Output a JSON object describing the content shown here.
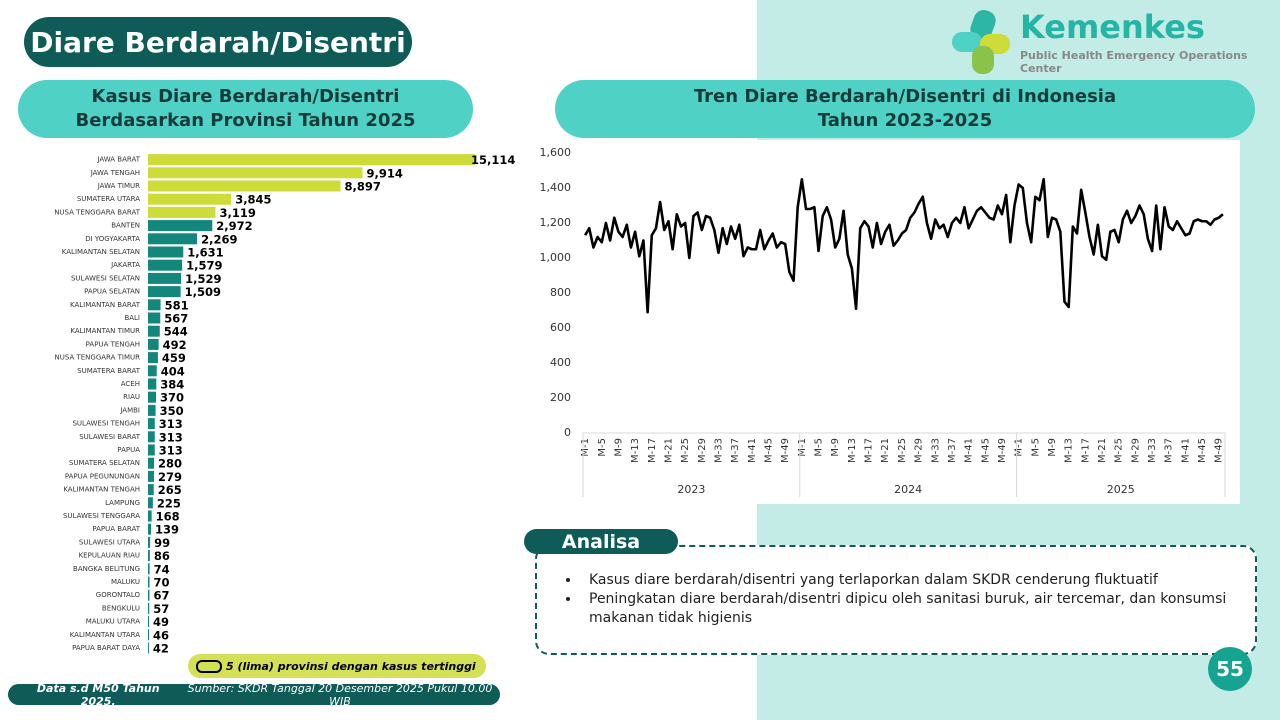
{
  "header": {
    "title": "Diare Berdarah/Disentri"
  },
  "logo": {
    "name": "Kemenkes",
    "subtitle": "Public Health Emergency Operations Center"
  },
  "chart_data": [
    {
      "type": "hbar",
      "title": [
        "Kasus Diare Berdarah/Disentri",
        "Berdasarkan Provinsi Tahun 2025"
      ],
      "categories": [
        "JAWA BARAT",
        "JAWA TENGAH",
        "JAWA TIMUR",
        "SUMATERA UTARA",
        "NUSA TENGGARA BARAT",
        "BANTEN",
        "DI YOGYAKARTA",
        "KALIMANTAN SELATAN",
        "JAKARTA",
        "SULAWESI SELATAN",
        "PAPUA SELATAN",
        "KALIMANTAN BARAT",
        "BALI",
        "KALIMANTAN TIMUR",
        "PAPUA TENGAH",
        "NUSA TENGGARA TIMUR",
        "SUMATERA BARAT",
        "ACEH",
        "RIAU",
        "JAMBI",
        "SULAWESI TENGAH",
        "SULAWESI BARAT",
        "PAPUA",
        "SUMATERA SELATAN",
        "PAPUA PEGUNUNGAN",
        "KALIMANTAN TENGAH",
        "LAMPUNG",
        "SULAWESI TENGGARA",
        "PAPUA BARAT",
        "SULAWESI UTARA",
        "KEPULAUAN RIAU",
        "BANGKA BELITUNG",
        "MALUKU",
        "GORONTALO",
        "BENGKULU",
        "MALUKU UTARA",
        "KALIMANTAN UTARA",
        "PAPUA BARAT DAYA"
      ],
      "values": [
        15114,
        9914,
        8897,
        3845,
        3119,
        2972,
        2269,
        1631,
        1579,
        1529,
        1509,
        581,
        567,
        544,
        492,
        459,
        404,
        384,
        370,
        350,
        313,
        313,
        313,
        280,
        279,
        265,
        225,
        168,
        139,
        99,
        86,
        74,
        70,
        67,
        57,
        49,
        46,
        42
      ],
      "value_labels": [
        "15,114",
        "9,914",
        "8,897",
        "3,845",
        "3,119",
        "2,972",
        "2,269",
        "1,631",
        "1,579",
        "1,529",
        "1,509",
        "581",
        "567",
        "544",
        "492",
        "459",
        "404",
        "384",
        "370",
        "350",
        "313",
        "313",
        "313",
        "280",
        "279",
        "265",
        "225",
        "168",
        "139",
        "99",
        "86",
        "74",
        "70",
        "67",
        "57",
        "49",
        "46",
        "42"
      ],
      "colors": [
        "#cddc39",
        "#cddc39",
        "#cddc39",
        "#cddc39",
        "#cddc39",
        "#14877d",
        "#14877d",
        "#14877d",
        "#14877d",
        "#14877d",
        "#14877d",
        "#14877d",
        "#14877d",
        "#14877d",
        "#14877d",
        "#14877d",
        "#14877d",
        "#14877d",
        "#14877d",
        "#14877d",
        "#14877d",
        "#14877d",
        "#14877d",
        "#14877d",
        "#14877d",
        "#14877d",
        "#14877d",
        "#14877d",
        "#14877d",
        "#14877d",
        "#14877d",
        "#14877d",
        "#14877d",
        "#14877d",
        "#14877d",
        "#14877d",
        "#14877d",
        "#14877d"
      ]
    },
    {
      "type": "line",
      "title": [
        "Tren Diare Berdarah/Disentri di Indonesia",
        "Tahun 2023-2025"
      ],
      "categories": [
        "M-1",
        null,
        null,
        null,
        "M-5",
        null,
        null,
        null,
        "M-9",
        null,
        null,
        null,
        "M-13",
        null,
        null,
        null,
        "M-17",
        null,
        null,
        null,
        "M-21",
        null,
        null,
        null,
        "M-25",
        null,
        null,
        null,
        "M-29",
        null,
        null,
        null,
        "M-33",
        null,
        null,
        null,
        "M-37",
        null,
        null,
        null,
        "M-41",
        null,
        null,
        null,
        "M-45",
        null,
        null,
        null,
        "M-49",
        null,
        null,
        null,
        "M-1",
        null,
        null,
        null,
        "M-5",
        null,
        null,
        null,
        "M-9",
        null,
        null,
        null,
        "M-13",
        null,
        null,
        null,
        "M-17",
        null,
        null,
        null,
        "M-21",
        null,
        null,
        null,
        "M-25",
        null,
        null,
        null,
        "M-29",
        null,
        null,
        null,
        "M-33",
        null,
        null,
        null,
        "M-37",
        null,
        null,
        null,
        "M-41",
        null,
        null,
        null,
        "M-45",
        null,
        null,
        null,
        "M-49",
        null,
        null,
        null,
        "M-1",
        null,
        null,
        null,
        "M-5",
        null,
        null,
        null,
        "M-9",
        null,
        null,
        null,
        "M-13",
        null,
        null,
        null,
        "M-17",
        null,
        null,
        null,
        "M-21",
        null,
        null,
        null,
        "M-25",
        null,
        null,
        null,
        "M-29",
        null,
        null,
        null,
        "M-33",
        null,
        null,
        null,
        "M-37",
        null,
        null,
        null,
        "M-41",
        null,
        null,
        null,
        "M-45",
        null,
        null,
        null,
        "M-49",
        null
      ],
      "groups": [
        "2023",
        "2024",
        "2025"
      ],
      "values": [
        1130,
        1170,
        1060,
        1120,
        1090,
        1200,
        1100,
        1230,
        1150,
        1120,
        1190,
        1060,
        1150,
        1010,
        1100,
        690,
        1130,
        1170,
        1320,
        1160,
        1210,
        1050,
        1250,
        1180,
        1200,
        1000,
        1240,
        1260,
        1160,
        1240,
        1230,
        1160,
        1030,
        1170,
        1080,
        1180,
        1110,
        1190,
        1010,
        1060,
        1050,
        1050,
        1160,
        1050,
        1100,
        1140,
        1060,
        1090,
        1080,
        920,
        870,
        1290,
        1450,
        1280,
        1280,
        1290,
        1040,
        1240,
        1290,
        1220,
        1060,
        1110,
        1270,
        1020,
        940,
        710,
        1170,
        1210,
        1180,
        1060,
        1200,
        1080,
        1150,
        1190,
        1070,
        1100,
        1140,
        1160,
        1230,
        1260,
        1310,
        1350,
        1200,
        1110,
        1220,
        1170,
        1190,
        1120,
        1200,
        1230,
        1200,
        1290,
        1170,
        1220,
        1270,
        1290,
        1260,
        1230,
        1220,
        1300,
        1250,
        1360,
        1090,
        1300,
        1420,
        1400,
        1200,
        1090,
        1350,
        1330,
        1450,
        1120,
        1230,
        1220,
        1150,
        750,
        720,
        1180,
        1140,
        1390,
        1260,
        1120,
        1020,
        1190,
        1010,
        990,
        1150,
        1160,
        1090,
        1220,
        1270,
        1200,
        1240,
        1300,
        1250,
        1110,
        1040,
        1300,
        1050,
        1290,
        1180,
        1160,
        1210,
        1170,
        1130,
        1140,
        1210,
        1220,
        1210,
        1210,
        1190,
        1220,
        1230,
        1250
      ],
      "color": "#000000",
      "ylim": [
        0,
        1600
      ],
      "yticks": [
        0,
        200,
        400,
        600,
        800,
        {
          "value": 1000,
          "label": "1,000"
        },
        {
          "value": 1200,
          "label": "1,200"
        },
        {
          "value": 1400,
          "label": "1,400"
        },
        {
          "value": 1600,
          "label": "1,600"
        }
      ]
    }
  ],
  "legend_note": "5 (lima) provinsi dengan kasus tertinggi",
  "analysis": {
    "title": "Analisa",
    "items": [
      "Kasus diare berdarah/disentri yang terlaporkan dalam SKDR cenderung fluktuatif",
      "Peningkatan diare berdarah/disentri dipicu oleh sanitasi buruk, air tercemar, dan konsumsi makanan tidak higienis"
    ]
  },
  "footer": {
    "period": "Data s.d M50 Tahun 2025.",
    "source": "Sumber: SKDR Tanggal 20 Desember 2025 Pukul 10.00 WIB"
  },
  "page_number": "55"
}
